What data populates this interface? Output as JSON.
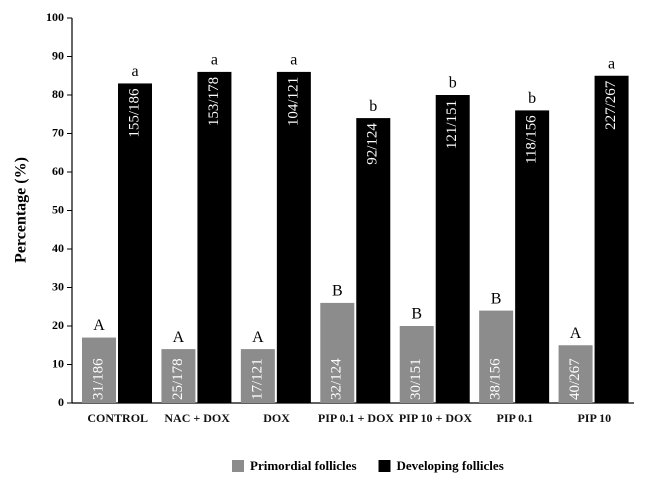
{
  "chart_data": {
    "type": "bar",
    "y_label": "Percentage (%)",
    "categories": [
      "CONTROL",
      "NAC + DOX",
      "DOX",
      "PIP 0.1 + DOX",
      "PIP 10 + DOX",
      "PIP 0.1",
      "PIP 10"
    ],
    "series": [
      {
        "name": "Primordial follicles",
        "color": "#8c8c8c",
        "values": [
          17,
          14,
          14,
          26,
          20,
          24,
          15
        ],
        "counts": [
          "31/186",
          "25/178",
          "17/121",
          "32/124",
          "30/151",
          "38/156",
          "40/267"
        ],
        "letters": [
          "A",
          "A",
          "A",
          "B",
          "B",
          "B",
          "A"
        ]
      },
      {
        "name": "Developing follicles",
        "color": "#000000",
        "values": [
          83,
          86,
          86,
          74,
          80,
          76,
          85
        ],
        "counts": [
          "155/186",
          "153/178",
          "104/121",
          "92/124",
          "121/151",
          "118/156",
          "227/267"
        ],
        "letters": [
          "a",
          "a",
          "a",
          "b",
          "b",
          "b",
          "a"
        ]
      }
    ],
    "ylim": [
      0,
      100
    ],
    "yticks": [
      0,
      10,
      20,
      30,
      40,
      50,
      60,
      70,
      80,
      90,
      100
    ],
    "grid": false,
    "legend": "bottom"
  }
}
